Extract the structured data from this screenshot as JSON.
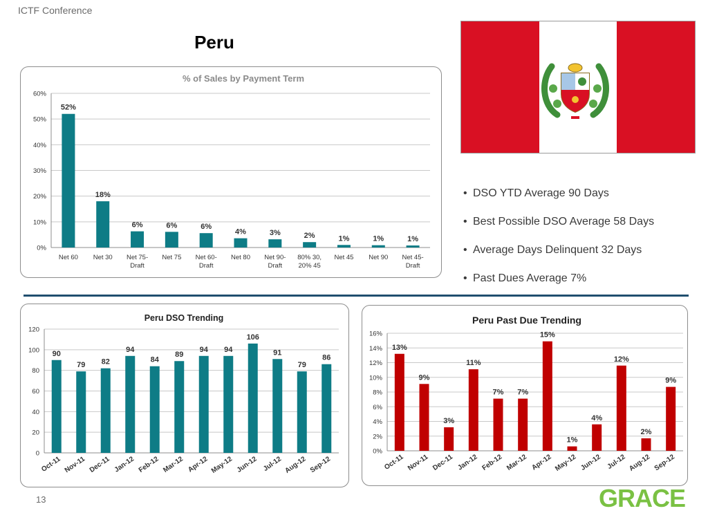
{
  "header": {
    "conference": "ICTF Conference",
    "title": "Peru"
  },
  "colors": {
    "teal": "#0e7c86",
    "red": "#c00000",
    "flag_red": "#d91023",
    "divider": "#1f4e6e",
    "logo_green": "#7ac143"
  },
  "bullets": [
    "DSO YTD Average 90 Days",
    "Best Possible DSO Average 58 Days",
    "Average Days Delinquent  32 Days",
    "Past Dues  Average 7%"
  ],
  "footer": {
    "page_number": "13",
    "logo": "GRACE"
  },
  "chart_data": [
    {
      "type": "bar",
      "title": "% of Sales by Payment Term",
      "categories": [
        "Net 60",
        "Net 30",
        "Net 75-\nDraft",
        "Net 75",
        "Net 60-\nDraft",
        "Net 80",
        "Net 90-\nDraft",
        "80% 30,\n20% 45",
        "Net 45",
        "Net 90",
        "Net 45-\nDraft"
      ],
      "values": [
        52,
        18,
        6.3,
        6.1,
        5.6,
        3.6,
        3.2,
        2.1,
        1,
        0.9,
        0.8
      ],
      "data_labels": [
        "52%",
        "18%",
        "6%",
        "6%",
        "6%",
        "4%",
        "3%",
        "2%",
        "1%",
        "1%",
        "1%"
      ],
      "ylim": [
        0,
        60
      ],
      "yticks": [
        "0%",
        "10%",
        "20%",
        "30%",
        "40%",
        "50%",
        "60%"
      ],
      "color": "#0e7c86",
      "grid": true
    },
    {
      "type": "bar",
      "title": "Peru  DSO Trending",
      "categories": [
        "Oct-11",
        "Nov-11",
        "Dec-11",
        "Jan-12",
        "Feb-12",
        "Mar-12",
        "Apr-12",
        "May-12",
        "Jun-12",
        "Jul-12",
        "Aug-12",
        "Sep-12"
      ],
      "values": [
        90,
        79,
        82,
        94,
        84,
        89,
        94,
        94,
        106,
        91,
        79,
        86
      ],
      "data_labels": [
        "90",
        "79",
        "82",
        "94",
        "84",
        "89",
        "94",
        "94",
        "106",
        "91",
        "79",
        "86"
      ],
      "ylim": [
        0,
        120
      ],
      "yticks": [
        "0",
        "20",
        "40",
        "60",
        "80",
        "100",
        "120"
      ],
      "color": "#0e7c86",
      "grid": true
    },
    {
      "type": "bar",
      "title": "Peru  Past Due Trending",
      "categories": [
        "Oct-11",
        "Nov-11",
        "Dec-11",
        "Jan-12",
        "Feb-12",
        "Mar-12",
        "Apr-12",
        "May-12",
        "Jun-12",
        "Jul-12",
        "Aug-12",
        "Sep-12"
      ],
      "values": [
        13.2,
        9.1,
        3.2,
        11.1,
        7.1,
        7.1,
        14.9,
        0.6,
        3.6,
        11.6,
        1.7,
        8.7
      ],
      "data_labels": [
        "13%",
        "9%",
        "3%",
        "11%",
        "7%",
        "7%",
        "15%",
        "1%",
        "4%",
        "12%",
        "2%",
        "9%"
      ],
      "ylim": [
        0,
        16
      ],
      "yticks": [
        "0%",
        "2%",
        "4%",
        "6%",
        "8%",
        "10%",
        "12%",
        "14%",
        "16%"
      ],
      "color": "#c00000",
      "grid": true
    }
  ]
}
